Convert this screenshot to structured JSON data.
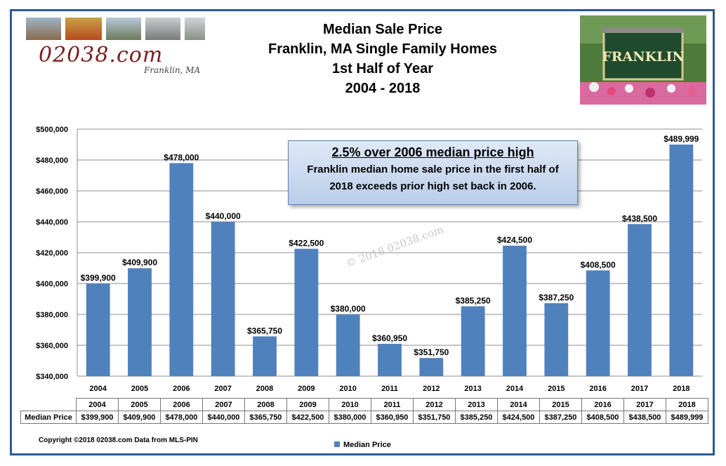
{
  "logo": {
    "text": "02038.com",
    "subtitle": "Franklin, MA"
  },
  "header": {
    "title_line1": "Median Sale Price",
    "title_line2": "Franklin, MA Single Family Homes",
    "title_line3": "1st Half of Year",
    "title_line4": "2004 - 2018"
  },
  "photo": {
    "sign_text": "FRANKLIN"
  },
  "callout": {
    "headline": "2.5% over 2006 median price high",
    "body_line1": "Franklin median home sale price in the first half of",
    "body_line2": "2018 exceeds prior high set back in 2006."
  },
  "watermark": "© 2018 02038.com",
  "chart_data": {
    "type": "bar",
    "categories": [
      "2004",
      "2005",
      "2006",
      "2007",
      "2008",
      "2009",
      "2010",
      "2011",
      "2012",
      "2013",
      "2014",
      "2015",
      "2016",
      "2017",
      "2018"
    ],
    "series": [
      {
        "name": "Median Price",
        "values": [
          399900,
          409900,
          478000,
          440000,
          365750,
          422500,
          380000,
          360950,
          351750,
          385250,
          424500,
          387250,
          408500,
          438500,
          489999
        ],
        "labels": [
          "$399,900",
          "$409,900",
          "$478,000",
          "$440,000",
          "$365,750",
          "$422,500",
          "$380,000",
          "$360,950",
          "$351,750",
          "$385,250",
          "$424,500",
          "$387,250",
          "$408,500",
          "$438,500",
          "$489,999"
        ]
      }
    ],
    "ylim": [
      340000,
      500000
    ],
    "yticks": [
      340000,
      360000,
      380000,
      400000,
      420000,
      440000,
      460000,
      480000,
      500000
    ],
    "ytick_labels": [
      "$340,000",
      "$360,000",
      "$380,000",
      "$400,000",
      "$420,000",
      "$440,000",
      "$460,000",
      "$480,000",
      "$500,000"
    ],
    "grid": true,
    "bar_color": "#4f81bd",
    "legend_position": "bottom"
  },
  "table": {
    "row_header": "Median Price"
  },
  "legend": {
    "label": "Median Price"
  },
  "footer": {
    "copyright": "Copyright ©2018 02038.com  Data from MLS-PIN"
  }
}
